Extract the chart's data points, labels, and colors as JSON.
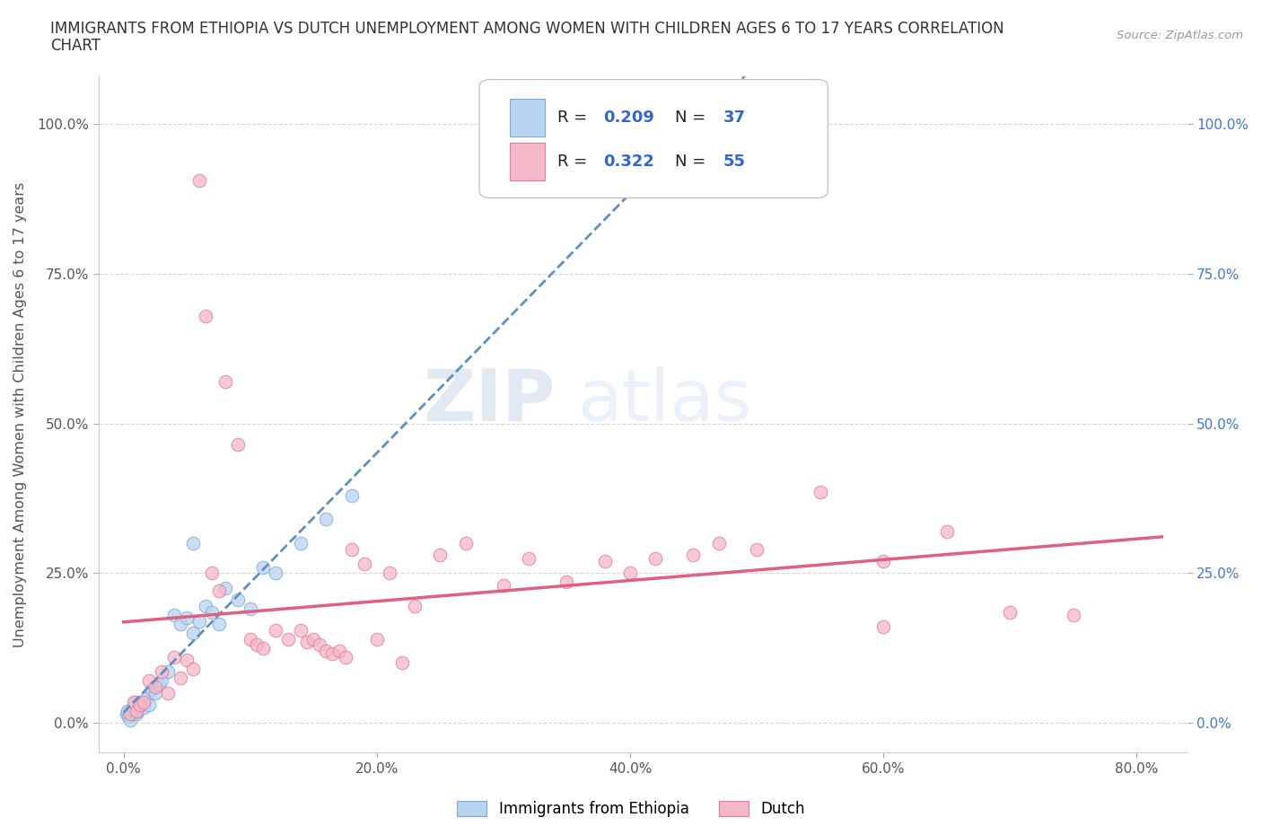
{
  "title_line1": "IMMIGRANTS FROM ETHIOPIA VS DUTCH UNEMPLOYMENT AMONG WOMEN WITH CHILDREN AGES 6 TO 17 YEARS CORRELATION",
  "title_line2": "CHART",
  "source": "Source: ZipAtlas.com",
  "ylabel": "Unemployment Among Women with Children Ages 6 to 17 years",
  "xlabel_ticks": [
    "0.0%",
    "20.0%",
    "40.0%",
    "60.0%",
    "80.0%"
  ],
  "xlabel_vals": [
    0.0,
    20.0,
    40.0,
    60.0,
    80.0
  ],
  "ylabel_ticks": [
    "0.0%",
    "25.0%",
    "50.0%",
    "75.0%",
    "100.0%"
  ],
  "ylabel_vals": [
    0.0,
    25.0,
    50.0,
    75.0,
    100.0
  ],
  "xlim": [
    -2,
    84
  ],
  "ylim": [
    -5,
    108
  ],
  "watermark_line1": "ZIP",
  "watermark_line2": "atlas",
  "blue_color": "#b8d4f0",
  "pink_color": "#f4b8c8",
  "blue_edge_color": "#7aa8d8",
  "pink_edge_color": "#e8789a",
  "blue_line_color": "#6090c0",
  "pink_line_color": "#e06080",
  "blue_scatter": [
    [
      0.2,
      1.5
    ],
    [
      0.3,
      2.0
    ],
    [
      0.4,
      1.0
    ],
    [
      0.5,
      0.5
    ],
    [
      0.6,
      1.5
    ],
    [
      0.7,
      2.5
    ],
    [
      0.8,
      2.0
    ],
    [
      0.9,
      3.5
    ],
    [
      1.0,
      1.5
    ],
    [
      1.1,
      2.0
    ],
    [
      1.2,
      3.0
    ],
    [
      1.4,
      3.5
    ],
    [
      1.6,
      2.5
    ],
    [
      1.8,
      4.0
    ],
    [
      2.0,
      3.0
    ],
    [
      2.2,
      5.5
    ],
    [
      2.5,
      5.0
    ],
    [
      2.8,
      6.5
    ],
    [
      3.0,
      7.0
    ],
    [
      3.5,
      8.5
    ],
    [
      4.0,
      18.0
    ],
    [
      4.5,
      16.5
    ],
    [
      5.0,
      17.5
    ],
    [
      5.5,
      15.0
    ],
    [
      6.0,
      17.0
    ],
    [
      6.5,
      19.5
    ],
    [
      7.0,
      18.5
    ],
    [
      7.5,
      16.5
    ],
    [
      8.0,
      22.5
    ],
    [
      9.0,
      20.5
    ],
    [
      10.0,
      19.0
    ],
    [
      11.0,
      26.0
    ],
    [
      12.0,
      25.0
    ],
    [
      14.0,
      30.0
    ],
    [
      16.0,
      34.0
    ],
    [
      18.0,
      38.0
    ],
    [
      5.5,
      30.0
    ]
  ],
  "pink_scatter": [
    [
      0.5,
      1.5
    ],
    [
      0.8,
      3.5
    ],
    [
      1.0,
      2.0
    ],
    [
      1.3,
      3.0
    ],
    [
      1.6,
      3.5
    ],
    [
      2.0,
      7.0
    ],
    [
      2.5,
      6.0
    ],
    [
      3.0,
      8.5
    ],
    [
      3.5,
      5.0
    ],
    [
      4.0,
      11.0
    ],
    [
      4.5,
      7.5
    ],
    [
      5.0,
      10.5
    ],
    [
      5.5,
      9.0
    ],
    [
      6.0,
      90.5
    ],
    [
      6.5,
      68.0
    ],
    [
      7.0,
      25.0
    ],
    [
      7.5,
      22.0
    ],
    [
      8.0,
      57.0
    ],
    [
      9.0,
      46.5
    ],
    [
      10.0,
      14.0
    ],
    [
      10.5,
      13.0
    ],
    [
      11.0,
      12.5
    ],
    [
      12.0,
      15.5
    ],
    [
      13.0,
      14.0
    ],
    [
      14.0,
      15.5
    ],
    [
      14.5,
      13.5
    ],
    [
      15.0,
      14.0
    ],
    [
      15.5,
      13.0
    ],
    [
      16.0,
      12.0
    ],
    [
      16.5,
      11.5
    ],
    [
      17.0,
      12.0
    ],
    [
      17.5,
      11.0
    ],
    [
      18.0,
      29.0
    ],
    [
      19.0,
      26.5
    ],
    [
      20.0,
      14.0
    ],
    [
      21.0,
      25.0
    ],
    [
      22.0,
      10.0
    ],
    [
      23.0,
      19.5
    ],
    [
      25.0,
      28.0
    ],
    [
      27.0,
      30.0
    ],
    [
      30.0,
      23.0
    ],
    [
      32.0,
      27.5
    ],
    [
      35.0,
      23.5
    ],
    [
      38.0,
      27.0
    ],
    [
      40.0,
      25.0
    ],
    [
      42.0,
      27.5
    ],
    [
      45.0,
      28.0
    ],
    [
      47.0,
      30.0
    ],
    [
      50.0,
      29.0
    ],
    [
      55.0,
      38.5
    ],
    [
      60.0,
      27.0
    ],
    [
      60.0,
      16.0
    ],
    [
      65.0,
      32.0
    ],
    [
      70.0,
      18.5
    ],
    [
      75.0,
      18.0
    ]
  ]
}
